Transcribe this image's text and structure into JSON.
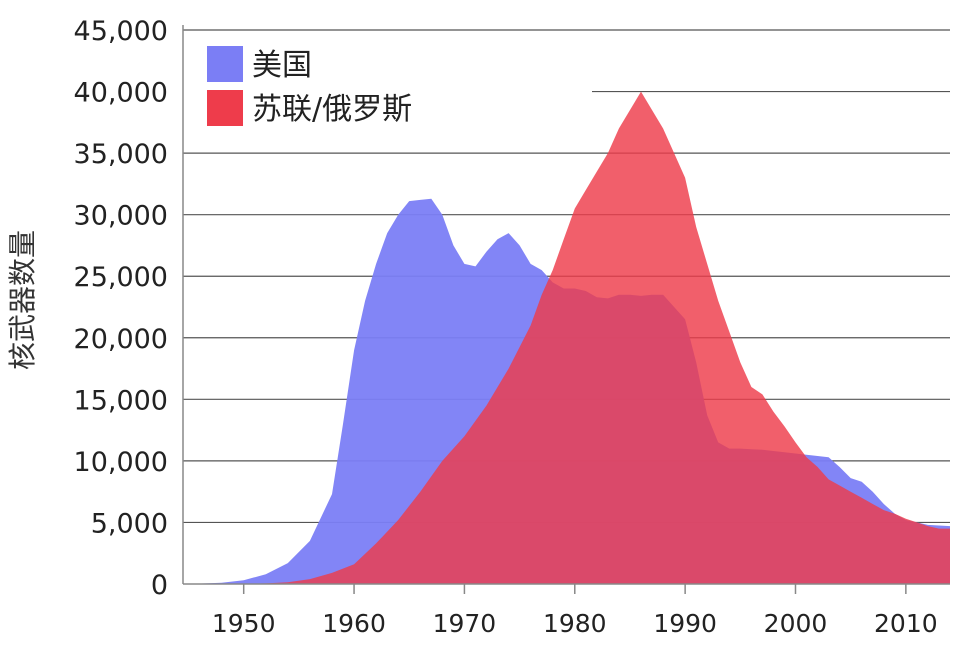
{
  "chart_data": {
    "type": "area",
    "title": "",
    "xlabel": "",
    "ylabel": "核武器数量",
    "xlim": [
      1944.5,
      2014
    ],
    "ylim": [
      0,
      45000
    ],
    "yticks": [
      0,
      5000,
      10000,
      15000,
      20000,
      25000,
      30000,
      35000,
      40000,
      45000
    ],
    "ytick_labels": [
      "0",
      "5,000",
      "10,000",
      "15,000",
      "20,000",
      "25,000",
      "30,000",
      "35,000",
      "40,000",
      "45,000"
    ],
    "xticks": [
      1950,
      1960,
      1970,
      1980,
      1990,
      2000,
      2010
    ],
    "xtick_labels": [
      "1950",
      "1960",
      "1970",
      "1980",
      "1990",
      "2000",
      "2010"
    ],
    "grid": "horizontal",
    "legend_position": "top-left",
    "series": [
      {
        "name": "美国",
        "color": "#7b7ef5",
        "x": [
          1945,
          1948,
          1950,
          1952,
          1954,
          1956,
          1958,
          1959,
          1960,
          1961,
          1962,
          1963,
          1964,
          1965,
          1966,
          1967,
          1968,
          1969,
          1970,
          1971,
          1972,
          1973,
          1974,
          1975,
          1976,
          1977,
          1978,
          1979,
          1980,
          1981,
          1982,
          1983,
          1984,
          1985,
          1986,
          1987,
          1988,
          1989,
          1990,
          1991,
          1992,
          1993,
          1994,
          1995,
          1996,
          1997,
          1998,
          1999,
          2000,
          2001,
          2002,
          2003,
          2004,
          2005,
          2006,
          2007,
          2008,
          2009,
          2010,
          2011,
          2012,
          2013,
          2014
        ],
        "y": [
          0,
          100,
          300,
          800,
          1700,
          3500,
          7300,
          13000,
          19000,
          23000,
          26000,
          28500,
          30000,
          31100,
          31200,
          31300,
          30000,
          27500,
          26000,
          25800,
          27000,
          28000,
          28500,
          27500,
          26000,
          25500,
          24500,
          24000,
          24000,
          23800,
          23300,
          23200,
          23500,
          23500,
          23400,
          23500,
          23500,
          22500,
          21500,
          18000,
          13700,
          11500,
          11000,
          11000,
          10950,
          10900,
          10800,
          10700,
          10600,
          10500,
          10400,
          10300,
          9500,
          8600,
          8300,
          7500,
          6500,
          5700,
          5200,
          5000,
          4800,
          4750,
          4700
        ]
      },
      {
        "name": "苏联/俄罗斯",
        "color": "#ee3c4b",
        "x": [
          1945,
          1949,
          1952,
          1954,
          1956,
          1958,
          1960,
          1962,
          1964,
          1966,
          1968,
          1970,
          1972,
          1974,
          1976,
          1977,
          1978,
          1979,
          1980,
          1981,
          1982,
          1983,
          1984,
          1985,
          1986,
          1987,
          1988,
          1989,
          1990,
          1991,
          1992,
          1993,
          1994,
          1995,
          1996,
          1997,
          1998,
          1999,
          2000,
          2001,
          2002,
          2003,
          2004,
          2005,
          2006,
          2007,
          2008,
          2009,
          2010,
          2011,
          2012,
          2013,
          2014
        ],
        "y": [
          0,
          0,
          50,
          150,
          400,
          900,
          1600,
          3300,
          5200,
          7500,
          10000,
          12000,
          14500,
          17500,
          21000,
          23500,
          25500,
          28000,
          30500,
          32000,
          33500,
          35000,
          37000,
          38500,
          40000,
          38500,
          37000,
          35000,
          33000,
          29000,
          26000,
          23000,
          20500,
          18000,
          16000,
          15400,
          14000,
          12800,
          11500,
          10300,
          9500,
          8500,
          8000,
          7500,
          7000,
          6500,
          6000,
          5700,
          5300,
          5000,
          4700,
          4500,
          4500
        ]
      }
    ]
  }
}
